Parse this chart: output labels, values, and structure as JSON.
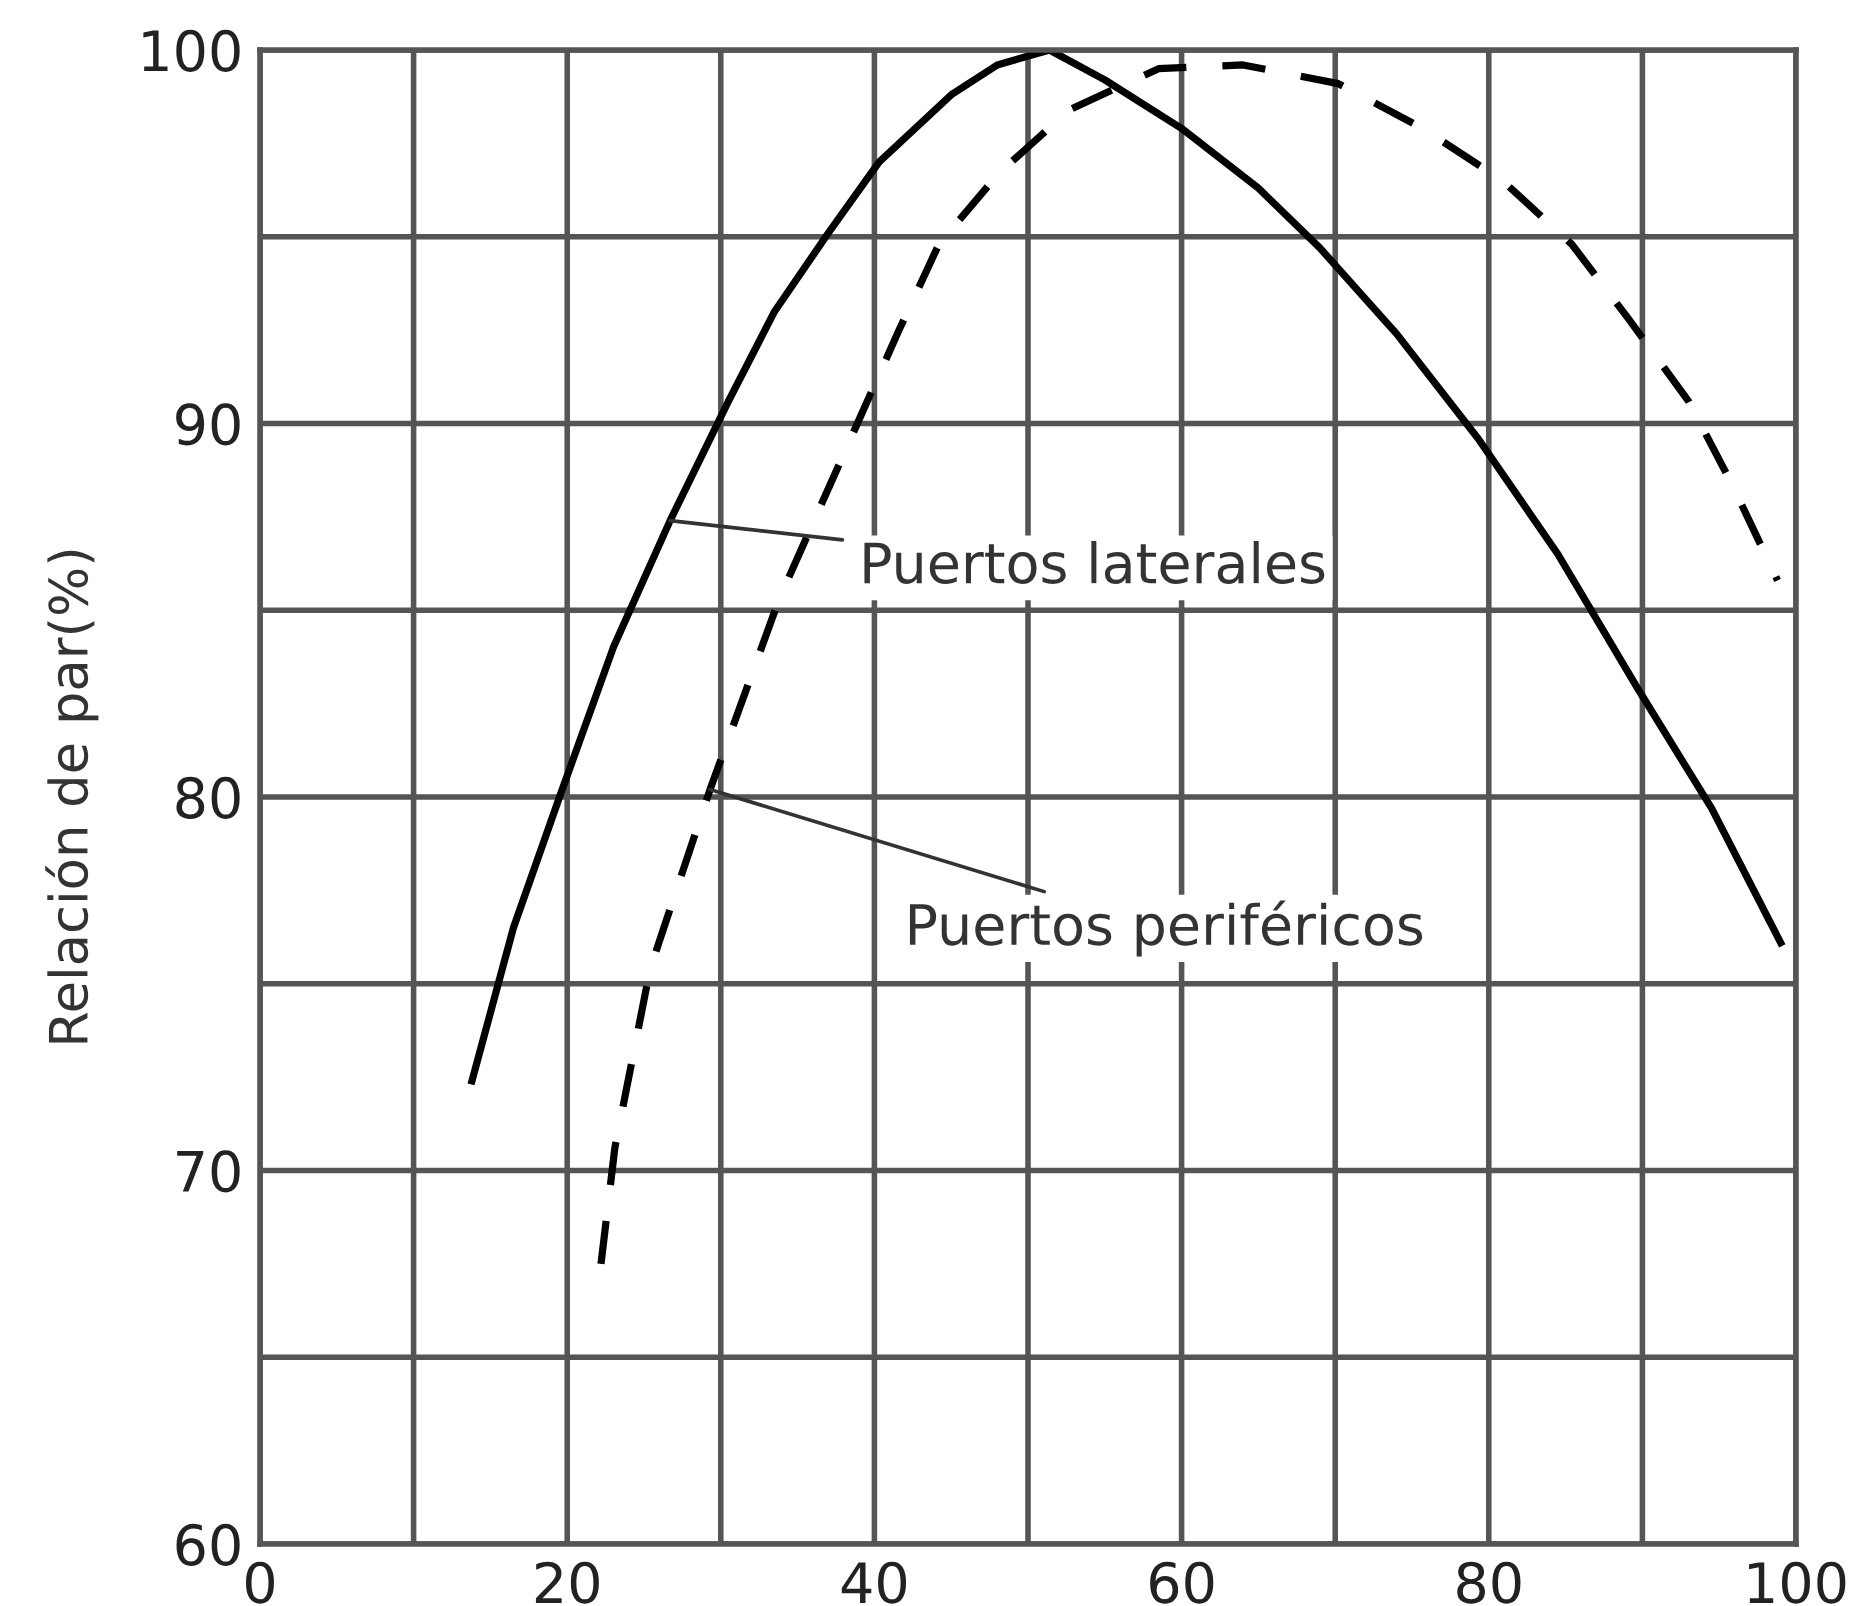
{
  "chart_data": {
    "type": "line",
    "ylabel": "Relación de par(%)",
    "xlim": [
      0,
      100
    ],
    "ylim": [
      60,
      100
    ],
    "xticks": [
      0,
      {
        "value": 10,
        "label": null
      },
      20,
      {
        "value": 30,
        "label": null
      },
      40,
      {
        "value": 50,
        "label": null
      },
      60,
      {
        "value": 70,
        "label": null
      },
      80,
      {
        "value": 90,
        "label": null
      },
      100
    ],
    "yticks": [
      60,
      {
        "value": 65,
        "label": null
      },
      70,
      {
        "value": 75,
        "label": null
      },
      80,
      {
        "value": 85,
        "label": null
      },
      90,
      {
        "value": 95,
        "label": null
      },
      100
    ],
    "grid": true,
    "series": [
      {
        "color": "#000000",
        "line_style": "solid",
        "x": [
          13.8,
          16.5,
          19.5,
          23,
          26.7,
          30.5,
          33.5,
          37,
          40.3,
          45,
          48,
          51.4,
          55,
          60,
          65,
          69,
          74,
          79.3,
          84.5,
          89.7,
          94.5,
          99
        ],
        "values": [
          72.4,
          76.5,
          80,
          84,
          87.4,
          90.6,
          93,
          95.1,
          97,
          98.8,
          99.6,
          100,
          99.2,
          97.9,
          96.3,
          94.7,
          92.4,
          89.6,
          86.5,
          82.9,
          79.7,
          76.1
        ]
      },
      {
        "color": "#000000",
        "line_style": "dashed",
        "x": [
          22.2,
          23.1,
          25.4,
          29.3,
          33.8,
          39,
          41.6,
          44.2,
          48.1,
          52.7,
          58.5,
          64,
          70.2,
          75.7,
          80.9,
          85.4,
          89.1,
          93,
          95.8,
          98.8
        ],
        "values": [
          67.5,
          70.6,
          75.4,
          80.2,
          85.3,
          90.1,
          92.5,
          94.8,
          96.7,
          98.4,
          99.5,
          99.6,
          99.1,
          97.9,
          96.5,
          94.8,
          92.8,
          90.6,
          88.4,
          85.8
        ]
      }
    ],
    "annotations": [
      {
        "text": "Puertos laterales",
        "x": 26.7,
        "y": 87.4
      },
      {
        "text": "Puertos periféricos",
        "x": 29.3,
        "y": 80.2
      }
    ]
  }
}
